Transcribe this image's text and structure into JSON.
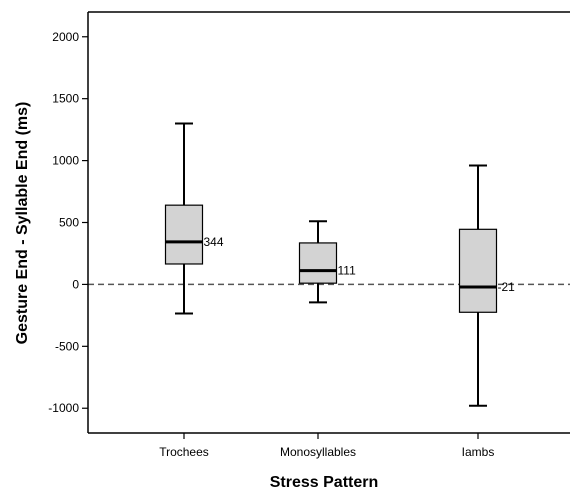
{
  "chart_data": {
    "type": "box",
    "xlabel": "Stress Pattern",
    "ylabel": "Gesture End - Syllable End (ms)",
    "ylim": [
      -1200,
      2200
    ],
    "yticks": [
      -1000,
      -500,
      0,
      500,
      1000,
      1500,
      2000
    ],
    "reference_line": {
      "y": 0,
      "style": "dashed"
    },
    "grid": false,
    "colors": {
      "box_fill": "#d3d3d3",
      "stroke": "#000000",
      "reference": "#555555"
    },
    "categories": [
      "Trochees",
      "Monosyllables",
      "Iambs"
    ],
    "boxes": [
      {
        "category": "Trochees",
        "min": -235,
        "q1": 165,
        "median": 344,
        "q3": 640,
        "max": 1300,
        "median_label": "344"
      },
      {
        "category": "Monosyllables",
        "min": -145,
        "q1": 10,
        "median": 111,
        "q3": 335,
        "max": 510,
        "median_label": "111"
      },
      {
        "category": "Iambs",
        "min": -980,
        "q1": -225,
        "median": -21,
        "q3": 445,
        "max": 960,
        "median_label": "-21"
      }
    ]
  }
}
